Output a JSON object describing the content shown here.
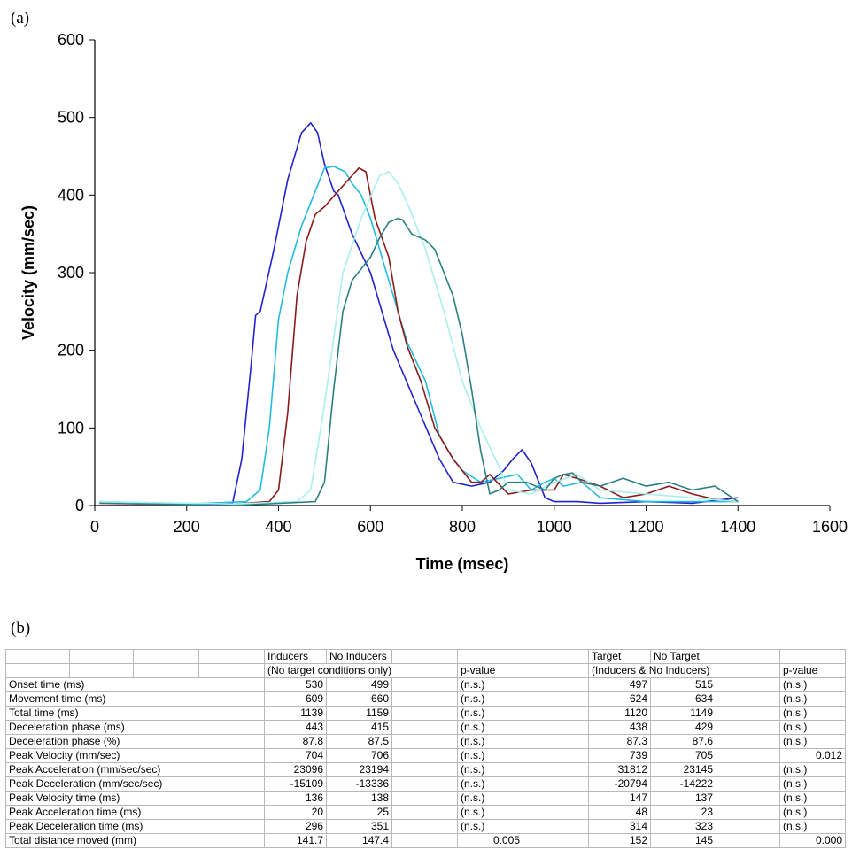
{
  "panel_labels": {
    "a": "(a)",
    "b": "(b)"
  },
  "chart_data": {
    "type": "line",
    "xlabel": "Time (msec)",
    "ylabel": "Velocity (mm/sec)",
    "xlim": [
      0,
      1600
    ],
    "ylim": [
      0,
      600
    ],
    "xticks": [
      0,
      200,
      400,
      600,
      800,
      1000,
      1200,
      1400,
      1600
    ],
    "yticks": [
      0,
      100,
      200,
      300,
      400,
      500,
      600
    ],
    "grid": false,
    "legend": "none",
    "series": [
      {
        "color": "#2222cc",
        "x": [
          10,
          200,
          300,
          320,
          340,
          350,
          360,
          390,
          420,
          450,
          470,
          485,
          500,
          520,
          530,
          560,
          600,
          650,
          700,
          750,
          780,
          820,
          860,
          890,
          910,
          930,
          950,
          980,
          1000,
          1050,
          1100,
          1200,
          1300,
          1400
        ],
        "y": [
          0,
          0,
          3,
          60,
          180,
          245,
          250,
          330,
          420,
          480,
          493,
          480,
          440,
          405,
          400,
          350,
          300,
          200,
          130,
          60,
          30,
          25,
          30,
          45,
          60,
          72,
          55,
          10,
          5,
          5,
          3,
          5,
          3,
          10
        ]
      },
      {
        "color": "#22bbdd",
        "x": [
          10,
          200,
          330,
          360,
          380,
          400,
          420,
          450,
          480,
          500,
          520,
          545,
          560,
          580,
          600,
          640,
          680,
          720,
          750,
          780,
          800,
          840,
          880,
          920,
          950,
          980,
          1000,
          1020,
          1060,
          1100,
          1200,
          1300,
          1400
        ],
        "y": [
          5,
          2,
          5,
          20,
          100,
          240,
          300,
          360,
          405,
          435,
          437,
          430,
          415,
          400,
          370,
          290,
          210,
          160,
          90,
          60,
          45,
          30,
          35,
          40,
          20,
          30,
          35,
          25,
          30,
          10,
          5,
          5,
          5
        ]
      },
      {
        "color": "#8b1a1a",
        "x": [
          10,
          250,
          380,
          400,
          420,
          440,
          460,
          480,
          500,
          530,
          560,
          575,
          590,
          610,
          640,
          660,
          680,
          710,
          740,
          780,
          820,
          840,
          860,
          900,
          950,
          1000,
          1020,
          1050,
          1100,
          1150,
          1200,
          1250,
          1300,
          1350,
          1400
        ],
        "y": [
          0,
          0,
          5,
          20,
          120,
          270,
          340,
          375,
          385,
          405,
          425,
          435,
          430,
          370,
          320,
          250,
          205,
          160,
          100,
          60,
          30,
          30,
          40,
          15,
          20,
          20,
          40,
          35,
          25,
          10,
          15,
          25,
          15,
          8,
          5
        ]
      },
      {
        "color": "#aaeeee",
        "x": [
          10,
          300,
          440,
          470,
          500,
          540,
          580,
          620,
          640,
          660,
          680,
          720,
          760,
          800,
          840,
          880,
          900,
          950,
          1000,
          1050,
          1100,
          1200,
          1300,
          1400
        ],
        "y": [
          5,
          2,
          5,
          20,
          130,
          300,
          370,
          425,
          430,
          415,
          390,
          330,
          250,
          160,
          100,
          50,
          20,
          15,
          30,
          40,
          20,
          15,
          10,
          5
        ]
      },
      {
        "color": "#2a8080",
        "x": [
          10,
          300,
          480,
          500,
          520,
          540,
          560,
          580,
          600,
          620,
          640,
          660,
          670,
          690,
          720,
          740,
          760,
          780,
          800,
          820,
          840,
          860,
          880,
          900,
          940,
          980,
          1000,
          1020,
          1040,
          1060,
          1100,
          1150,
          1200,
          1250,
          1300,
          1350,
          1400
        ],
        "y": [
          3,
          0,
          5,
          30,
          150,
          250,
          290,
          305,
          320,
          345,
          365,
          370,
          368,
          350,
          342,
          330,
          300,
          270,
          220,
          150,
          70,
          15,
          20,
          30,
          30,
          20,
          35,
          40,
          42,
          30,
          25,
          35,
          25,
          30,
          20,
          25,
          5
        ]
      }
    ]
  },
  "table": {
    "col_headers": [
      "",
      "",
      "",
      "",
      "Inducers",
      "No Inducers",
      "",
      "",
      "",
      "Target",
      "No Target",
      "",
      ""
    ],
    "sub_headers": [
      "",
      "",
      "",
      "",
      "(No target conditions only)",
      "",
      "",
      "p-value",
      "",
      "(Inducers & No Inducers)",
      "",
      "",
      "p-value"
    ],
    "rows": [
      {
        "label": "Onset time (ms)",
        "v1": "530",
        "v2": "499",
        "p1": "(n.s.)",
        "v3": "497",
        "v4": "515",
        "p2": "(n.s.)"
      },
      {
        "label": "Movement time (ms)",
        "v1": "609",
        "v2": "660",
        "p1": "(n.s.)",
        "v3": "624",
        "v4": "634",
        "p2": "(n.s.)"
      },
      {
        "label": "Total time (ms)",
        "v1": "1139",
        "v2": "1159",
        "p1": "(n.s.)",
        "v3": "1120",
        "v4": "1149",
        "p2": "(n.s.)"
      },
      {
        "label": "Deceleration phase (ms)",
        "v1": "443",
        "v2": "415",
        "p1": "(n.s.)",
        "v3": "438",
        "v4": "429",
        "p2": "(n.s.)"
      },
      {
        "label": "Deceleration phase (%)",
        "v1": "87.8",
        "v2": "87.5",
        "p1": "(n.s.)",
        "v3": "87.3",
        "v4": "87.6",
        "p2": "(n.s.)"
      },
      {
        "label": "Peak Velocity (mm/sec)",
        "v1": "704",
        "v2": "706",
        "p1": "(n.s.)",
        "v3": "739",
        "v4": "705",
        "p2": "0.012"
      },
      {
        "label": "Peak Acceleration (mm/sec/sec)",
        "v1": "23096",
        "v2": "23194",
        "p1": "(n.s.)",
        "v3": "31812",
        "v4": "23145",
        "p2": "(n.s.)"
      },
      {
        "label": "Peak Deceleration (mm/sec/sec)",
        "v1": "-15109",
        "v2": "-13336",
        "p1": "(n.s.)",
        "v3": "-20794",
        "v4": "-14222",
        "p2": "(n.s.)"
      },
      {
        "label": "Peak Velocity time (ms)",
        "v1": "136",
        "v2": "138",
        "p1": "(n.s.)",
        "v3": "147",
        "v4": "137",
        "p2": "(n.s.)"
      },
      {
        "label": "Peak Acceleration time (ms)",
        "v1": "20",
        "v2": "25",
        "p1": "(n.s.)",
        "v3": "48",
        "v4": "23",
        "p2": "(n.s.)"
      },
      {
        "label": "Peak Deceleration time (ms)",
        "v1": "296",
        "v2": "351",
        "p1": "(n.s.)",
        "v3": "314",
        "v4": "323",
        "p2": "(n.s.)"
      },
      {
        "label": "Total distance moved (mm)",
        "v1": "141.7",
        "v2": "147.4",
        "p1": "0.005",
        "v3": "152",
        "v4": "145",
        "p2": "0.000"
      }
    ]
  }
}
